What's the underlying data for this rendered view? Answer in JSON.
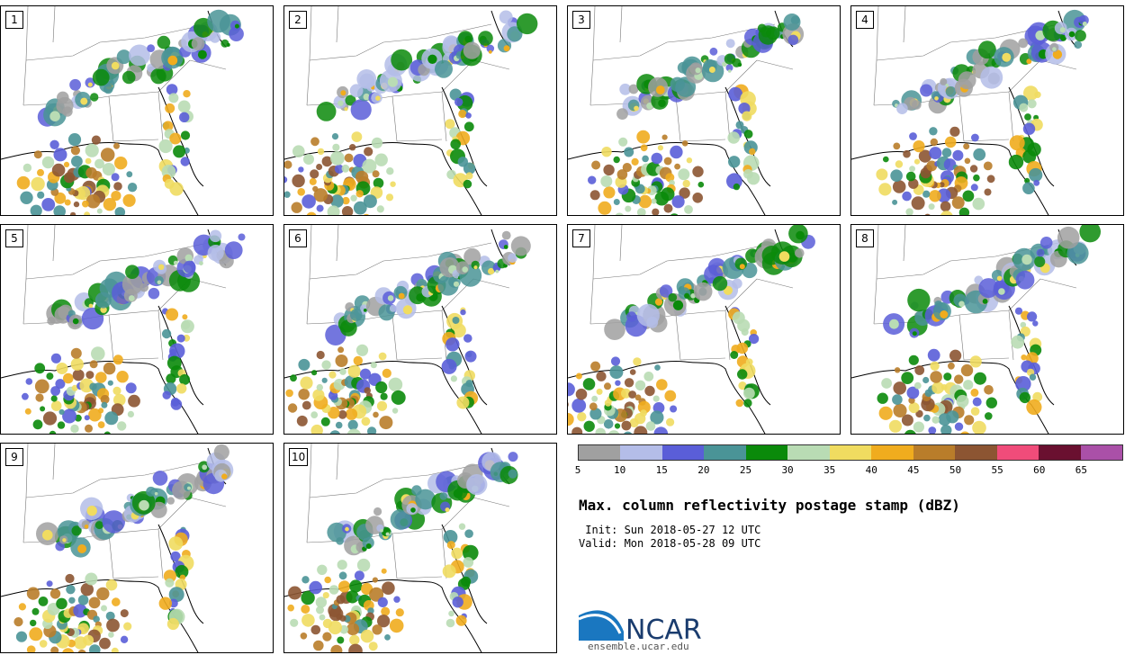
{
  "panels": [
    "1",
    "2",
    "3",
    "4",
    "5",
    "6",
    "7",
    "8",
    "9",
    "10"
  ],
  "colorbar": {
    "colors": [
      "#a0a0a0",
      "#b4bde8",
      "#5a5ed8",
      "#4a9497",
      "#0a8a0a",
      "#b9dcb4",
      "#f0dc60",
      "#f0ac1e",
      "#b97d2a",
      "#8c5532",
      "#f04c7a",
      "#6a1030",
      "#aa50a8"
    ],
    "ticks": [
      "5",
      "10",
      "15",
      "20",
      "25",
      "30",
      "35",
      "40",
      "45",
      "50",
      "55",
      "60",
      "65"
    ]
  },
  "title": "Max. column reflectivity postage stamp (dBZ)",
  "init": " Init: Sun 2018-05-27 12 UTC",
  "valid": "Valid: Mon 2018-05-28 09 UTC",
  "logo": {
    "text": "NCAR",
    "url": "ensemble.ucar.edu",
    "color": "#1a77c0"
  }
}
